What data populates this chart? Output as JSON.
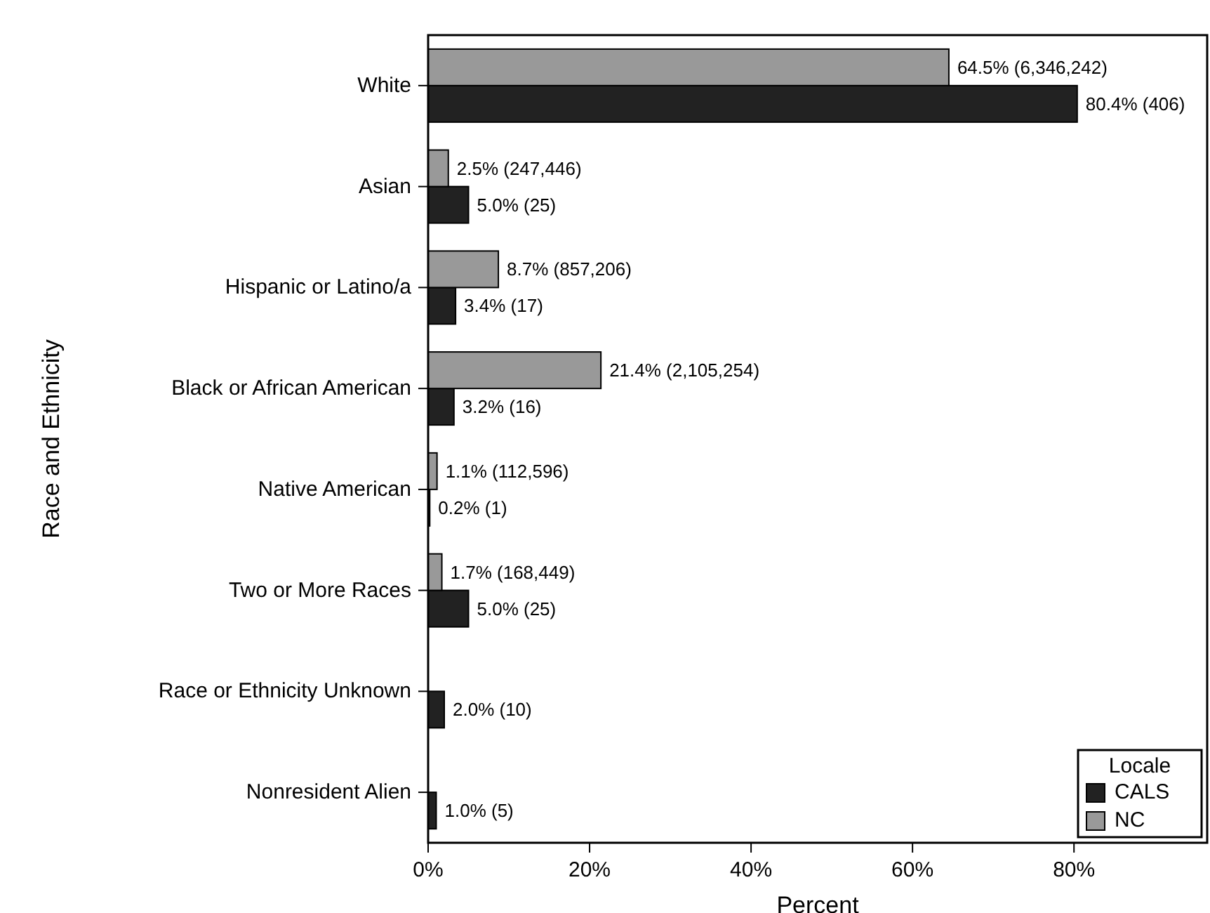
{
  "chart_data": {
    "type": "bar",
    "orientation": "horizontal",
    "xlabel": "Percent",
    "ylabel": "Race and Ethnicity",
    "legend_title": "Locale",
    "legend": "bottom right",
    "categories": [
      "White",
      "Asian",
      "Hispanic or Latino/a",
      "Black or African American",
      "Native American",
      "Two or More Races",
      "Race or Ethnicity Unknown",
      "Nonresident Alien"
    ],
    "series": [
      {
        "name": "CALS",
        "color": "#222222",
        "values": [
          80.4,
          5.0,
          3.4,
          3.2,
          0.2,
          5.0,
          2.0,
          1.0
        ],
        "value_labels": [
          "80.4% (406)",
          "5.0% (25)",
          "3.4% (17)",
          "3.2% (16)",
          "0.2% (1)",
          "5.0% (25)",
          "2.0% (10)",
          "1.0% (5)"
        ]
      },
      {
        "name": "NC",
        "color": "#999999",
        "values": [
          64.5,
          2.5,
          8.7,
          21.4,
          1.1,
          1.7,
          null,
          null
        ],
        "value_labels": [
          "64.5% (6,346,242)",
          "2.5% (247,446)",
          "8.7% (857,206)",
          "21.4% (2,105,254)",
          "1.1% (112,596)",
          "1.7% (168,449)",
          null,
          null
        ]
      }
    ],
    "xlim": [
      0,
      96.5
    ],
    "xticks": [
      {
        "value": 0,
        "label": "0%"
      },
      {
        "value": 20,
        "label": "20%"
      },
      {
        "value": 40,
        "label": "40%"
      },
      {
        "value": 60,
        "label": "60%"
      },
      {
        "value": 80,
        "label": "80%"
      }
    ],
    "grid": false
  }
}
